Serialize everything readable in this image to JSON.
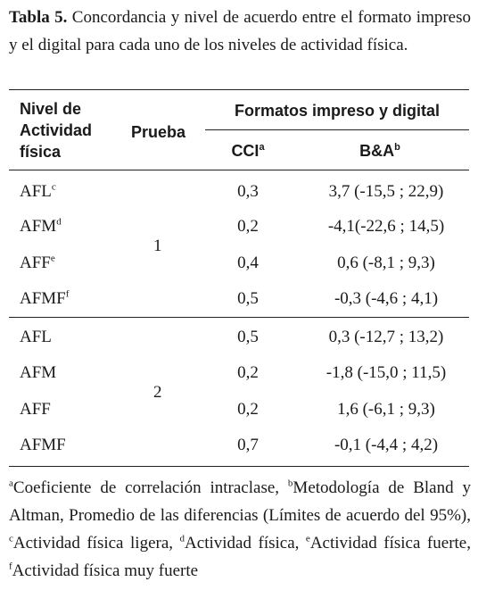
{
  "caption": {
    "label": "Tabla 5.",
    "text": " Concordancia y nivel de acuerdo entre el formato impreso y el digital para  cada uno de los niveles de actividad física."
  },
  "headers": {
    "col1_line1": "Nivel de",
    "col1_line2": "Actividad",
    "col1_line3": "física",
    "col2": "Prueba",
    "group": "Formatos impreso y digital",
    "cci": "CCI",
    "cci_sup": "a",
    "ba": "B&A",
    "ba_sup": "b"
  },
  "groups": [
    {
      "prueba": "1",
      "rows": [
        {
          "nivel": "AFL",
          "sup": "c",
          "cci": "0,3",
          "ba": "3,7 (-15,5 ; 22,9)"
        },
        {
          "nivel": "AFM",
          "sup": "d",
          "cci": "0,2",
          "ba": "-4,1(-22,6 ; 14,5)"
        },
        {
          "nivel": "AFF",
          "sup": "e",
          "cci": "0,4",
          "ba": "0,6 (-8,1 ; 9,3)"
        },
        {
          "nivel": "AFMF",
          "sup": "f",
          "cci": "0,5",
          "ba": "-0,3 (-4,6 ; 4,1)"
        }
      ]
    },
    {
      "prueba": "2",
      "rows": [
        {
          "nivel": "AFL",
          "sup": "",
          "cci": "0,5",
          "ba": "0,3 (-12,7 ; 13,2)"
        },
        {
          "nivel": "AFM",
          "sup": "",
          "cci": "0,2",
          "ba": "-1,8 (-15,0 ; 11,5)"
        },
        {
          "nivel": "AFF",
          "sup": "",
          "cci": "0,2",
          "ba": "1,6 (-6,1 ; 9,3)"
        },
        {
          "nivel": "AFMF",
          "sup": "",
          "cci": "0,7",
          "ba": "-0,1 (-4,4 ; 4,2)"
        }
      ]
    }
  ],
  "footnote": {
    "a_mark": "a",
    "a_text": "Coeficiente de correlación intraclase, ",
    "b_mark": "b",
    "b_text": "Metodología de Bland y Altman, Promedio de las diferencias (Límites de acuerdo del 95%),  ",
    "c_mark": "c",
    "c_text": "Actividad física ligera, ",
    "d_mark": "d",
    "d_text": "Actividad física,  ",
    "e_mark": "e",
    "e_text": "Actividad física fuerte, ",
    "f_mark": "f",
    "f_text": "Actividad física muy fuerte"
  }
}
